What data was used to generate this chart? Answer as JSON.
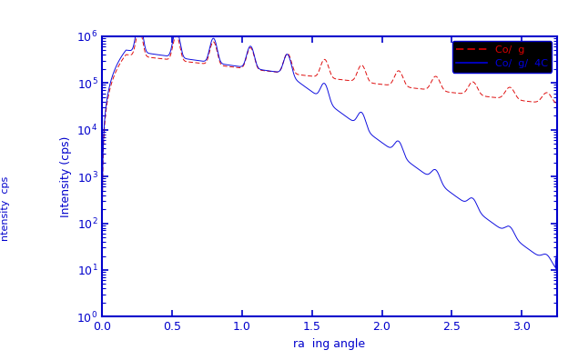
{
  "xlabel": "ra  ing angle",
  "ylabel": "Intensity (cps)",
  "ylabel2": "ntensity  cps",
  "legend1": "Co/  g",
  "legend2": "Co/  g/  4C",
  "xlim": [
    0.0,
    3.25
  ],
  "ylim_log": [
    1.0,
    1000000.0
  ],
  "xticks": [
    0.0,
    0.5,
    1.0,
    1.5,
    2.0,
    2.5,
    3.0
  ],
  "fig_bg": "#ffffff",
  "axes_face_color": "#ffffff",
  "axes_color": "#0000cc",
  "tick_color": "#0000cc",
  "line1_color": "#dd0000",
  "line2_color": "#0000dd",
  "legend_bg": "#000000",
  "legend_edge": "#0000cc"
}
